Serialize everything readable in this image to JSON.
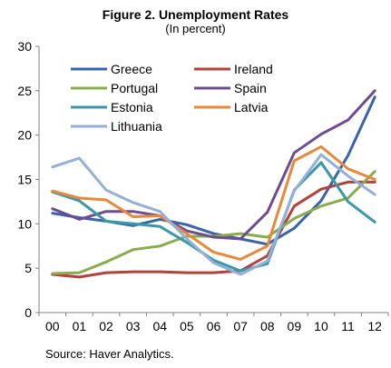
{
  "chart_data": {
    "type": "line",
    "title": "Figure 2. Unemployment Rates",
    "subtitle": "(In percent)",
    "source": "Source: Haver Analytics.",
    "x": [
      "00",
      "01",
      "02",
      "03",
      "04",
      "05",
      "06",
      "07",
      "08",
      "09",
      "10",
      "11",
      "12"
    ],
    "ylim": [
      0,
      30
    ],
    "yticks": [
      0,
      5,
      10,
      15,
      20,
      25,
      30
    ],
    "grid": false,
    "legend_position": "top-left",
    "series": [
      {
        "name": "Greece",
        "color": "#3a64a8",
        "values": [
          11.2,
          10.7,
          10.3,
          9.8,
          10.5,
          9.9,
          8.9,
          8.3,
          7.7,
          9.5,
          12.6,
          17.7,
          24.3
        ]
      },
      {
        "name": "Ireland",
        "color": "#b5413b",
        "values": [
          4.3,
          4.0,
          4.5,
          4.6,
          4.6,
          4.5,
          4.5,
          4.7,
          6.4,
          12.0,
          13.9,
          14.7,
          14.7
        ]
      },
      {
        "name": "Portugal",
        "color": "#8aac4c",
        "values": [
          4.4,
          4.5,
          5.7,
          7.1,
          7.5,
          8.6,
          8.6,
          8.9,
          8.5,
          10.6,
          12.0,
          12.9,
          15.9
        ]
      },
      {
        "name": "Spain",
        "color": "#6e4c92",
        "values": [
          11.7,
          10.5,
          11.4,
          11.4,
          10.9,
          9.2,
          8.5,
          8.3,
          11.3,
          18.0,
          20.1,
          21.7,
          25.0
        ]
      },
      {
        "name": "Estonia",
        "color": "#3a98a8",
        "values": [
          13.6,
          12.6,
          10.3,
          10.0,
          9.7,
          7.9,
          5.9,
          4.7,
          5.5,
          13.8,
          16.9,
          12.5,
          10.2
        ]
      },
      {
        "name": "Latvia",
        "color": "#e8883a",
        "values": [
          13.7,
          12.9,
          12.7,
          10.8,
          10.9,
          8.9,
          6.8,
          6.0,
          7.5,
          17.1,
          18.7,
          16.2,
          15.0
        ]
      },
      {
        "name": "Lithuania",
        "color": "#95b0d8",
        "values": [
          16.4,
          17.4,
          13.8,
          12.4,
          11.4,
          8.3,
          5.6,
          4.3,
          5.8,
          13.7,
          17.8,
          15.4,
          13.3
        ]
      }
    ]
  }
}
